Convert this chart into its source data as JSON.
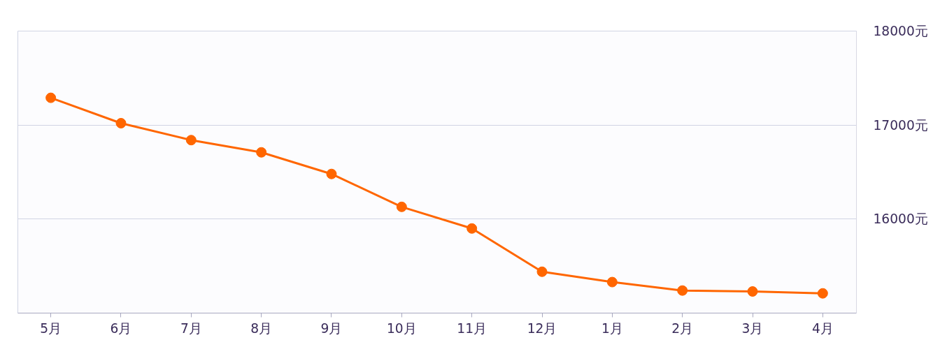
{
  "chart_data": {
    "type": "line",
    "categories": [
      "5月",
      "6月",
      "7月",
      "8月",
      "9月",
      "10月",
      "11月",
      "12月",
      "1月",
      "2月",
      "3月",
      "4月"
    ],
    "series": [
      {
        "color": "#ff6600",
        "values": [
          17290,
          17020,
          16840,
          16710,
          16480,
          16130,
          15900,
          15440,
          15330,
          15240,
          15230,
          15210
        ]
      }
    ],
    "ylim": [
      15000,
      18000
    ],
    "yticks": [
      {
        "value": 16000,
        "label": "16000元"
      },
      {
        "value": 17000,
        "label": "17000元"
      },
      {
        "value": 18000,
        "label": "18000元"
      }
    ],
    "grid": "y",
    "marker": "circle",
    "line_style": "solid"
  }
}
